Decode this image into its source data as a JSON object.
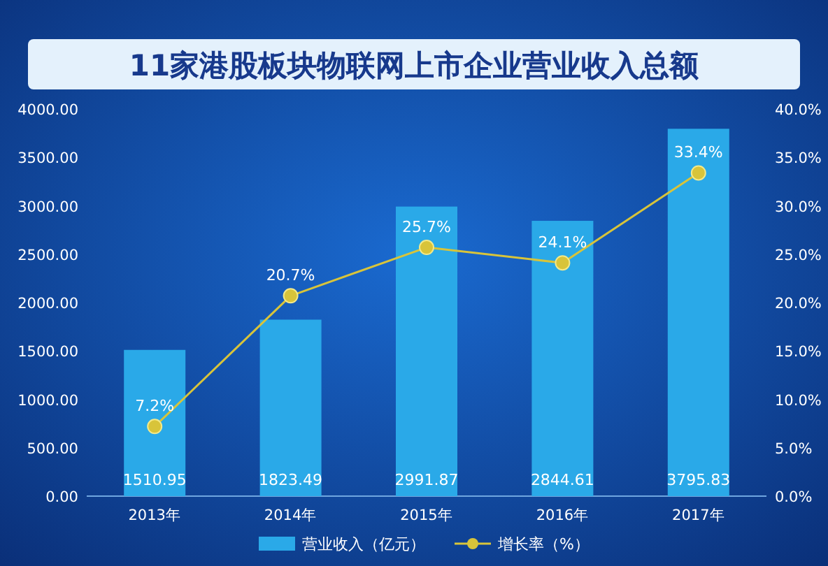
{
  "chart_data": {
    "type": "bar",
    "title": "11家港股板块物联网上市企业营业收入总额",
    "categories": [
      "2013年",
      "2014年",
      "2015年",
      "2016年",
      "2017年"
    ],
    "series": [
      {
        "name": "营业收入（亿元）",
        "color": "#2aa9e8",
        "values": [
          1510.95,
          1823.49,
          2991.87,
          2844.61,
          3795.83
        ],
        "data_labels": true
      },
      {
        "name": "增长率（%）",
        "type": "line",
        "axis": "y2",
        "color": "#d8c43a",
        "values": [
          7.2,
          20.7,
          25.7,
          24.1,
          33.4
        ],
        "value_labels": [
          "7.2%",
          "20.7%",
          "25.7%",
          "24.1%",
          "33.4%"
        ]
      }
    ],
    "ylim": [
      0,
      4000
    ],
    "yticks": [
      {
        "value": 0,
        "label": "0.00"
      },
      {
        "value": 500,
        "label": "500.00"
      },
      {
        "value": 1000,
        "label": "1000.00"
      },
      {
        "value": 1500,
        "label": "1500.00"
      },
      {
        "value": 2000,
        "label": "2000.00"
      },
      {
        "value": 2500,
        "label": "2500.00"
      },
      {
        "value": 3000,
        "label": "3000.00"
      },
      {
        "value": 3500,
        "label": "3500.00"
      },
      {
        "value": 4000,
        "label": "4000.00"
      }
    ],
    "y2lim": [
      0,
      40
    ],
    "y2ticks": [
      {
        "value": 0,
        "label": "0.0%"
      },
      {
        "value": 5,
        "label": "5.0%"
      },
      {
        "value": 10,
        "label": "10.0%"
      },
      {
        "value": 15,
        "label": "15.0%"
      },
      {
        "value": 20,
        "label": "20.0%"
      },
      {
        "value": 25,
        "label": "25.0%"
      },
      {
        "value": 30,
        "label": "30.0%"
      },
      {
        "value": 35,
        "label": "35.0%"
      },
      {
        "value": 40,
        "label": "40.0%"
      }
    ],
    "marker": "circle",
    "legend": "bottom"
  }
}
